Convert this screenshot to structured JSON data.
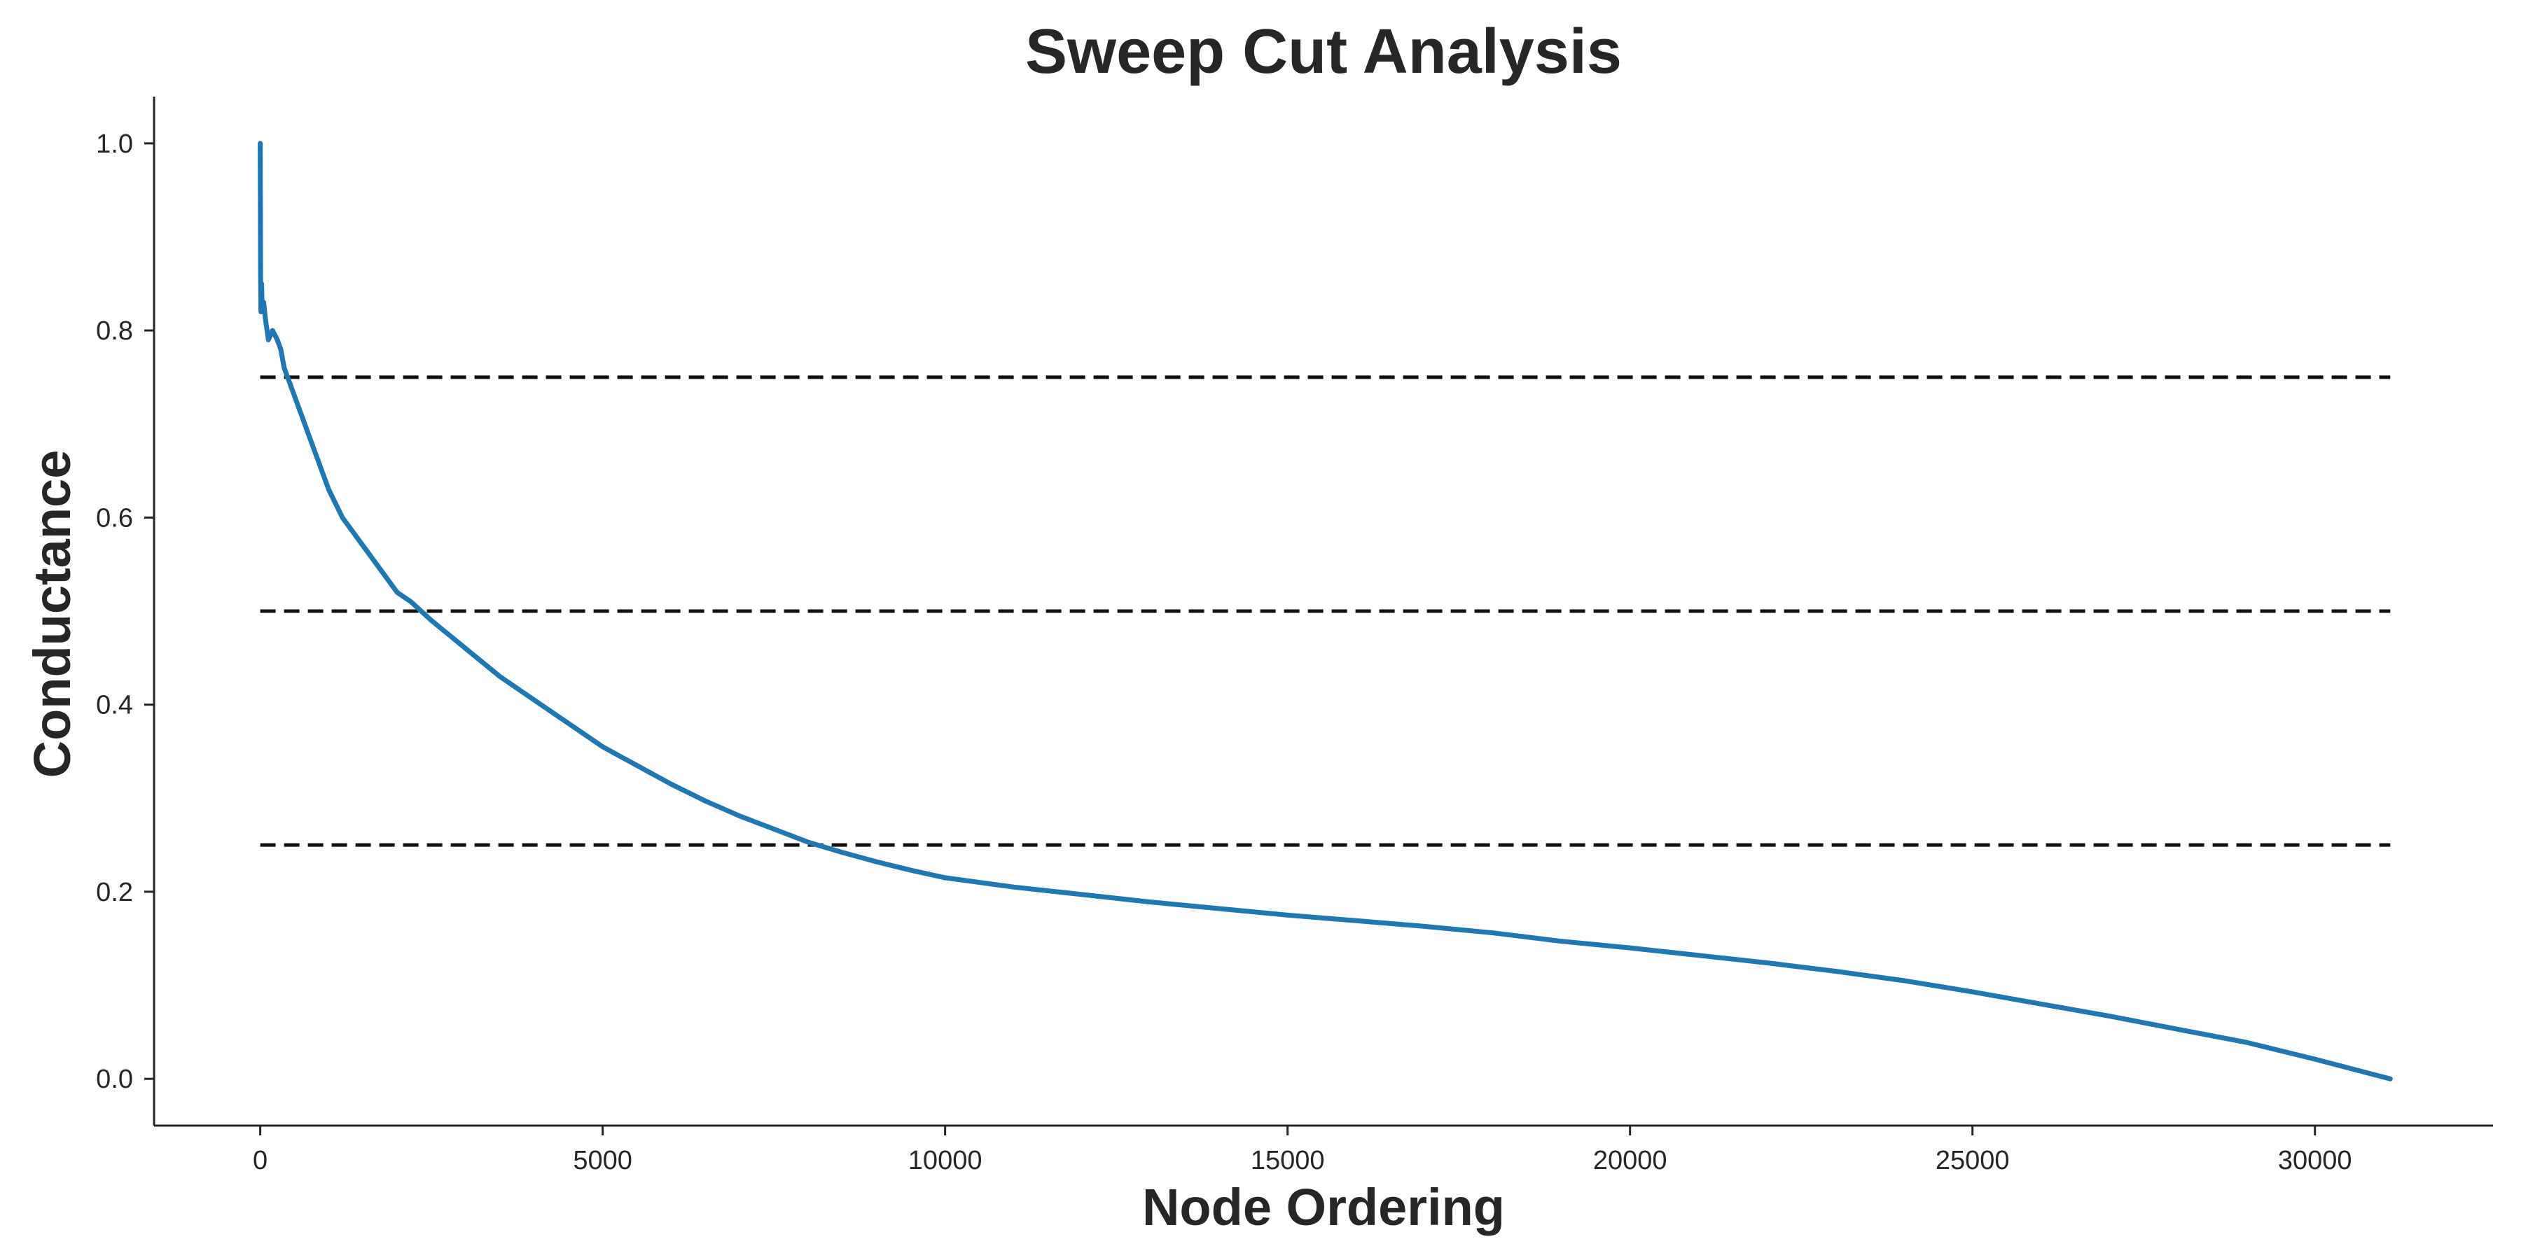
{
  "chart_data": {
    "type": "line",
    "title": "Sweep Cut Analysis",
    "xlabel": "Node Ordering",
    "ylabel": "Conductance",
    "xlim": [
      -1550,
      32600
    ],
    "ylim": [
      -0.05,
      1.05
    ],
    "xticks": [
      0,
      5000,
      10000,
      15000,
      20000,
      25000,
      30000
    ],
    "yticks": [
      0.0,
      0.2,
      0.4,
      0.6,
      0.8,
      1.0
    ],
    "xtick_labels": [
      "0",
      "5000",
      "10000",
      "15000",
      "20000",
      "25000",
      "30000"
    ],
    "ytick_labels": [
      "0.0",
      "0.2",
      "0.4",
      "0.6",
      "0.8",
      "1.0"
    ],
    "grid": false,
    "series": [
      {
        "color": "#1f77b4",
        "x": [
          0,
          5,
          10,
          20,
          30,
          50,
          80,
          120,
          180,
          250,
          300,
          350,
          400,
          500,
          600,
          800,
          1000,
          1200,
          1500,
          1800,
          2000,
          2200,
          2500,
          3000,
          3500,
          4000,
          4500,
          5000,
          5500,
          6000,
          6500,
          7000,
          7500,
          8000,
          8500,
          9000,
          9500,
          10000,
          11000,
          12000,
          13000,
          14000,
          15000,
          16000,
          17000,
          18000,
          19000,
          20000,
          21000,
          22000,
          23000,
          24000,
          25000,
          26000,
          27000,
          28000,
          29000,
          30000,
          31100
        ],
        "y": [
          1.0,
          0.86,
          0.82,
          0.85,
          0.82,
          0.83,
          0.81,
          0.79,
          0.8,
          0.79,
          0.78,
          0.76,
          0.75,
          0.73,
          0.71,
          0.67,
          0.63,
          0.6,
          0.57,
          0.54,
          0.52,
          0.51,
          0.49,
          0.46,
          0.43,
          0.405,
          0.38,
          0.355,
          0.335,
          0.315,
          0.297,
          0.281,
          0.267,
          0.253,
          0.242,
          0.232,
          0.223,
          0.215,
          0.205,
          0.197,
          0.189,
          0.182,
          0.175,
          0.169,
          0.163,
          0.156,
          0.147,
          0.14,
          0.132,
          0.124,
          0.115,
          0.105,
          0.093,
          0.08,
          0.067,
          0.053,
          0.039,
          0.021,
          0.0
        ]
      }
    ],
    "reference_lines": [
      {
        "y": 0.75,
        "x_start": 0,
        "x_end": 31100,
        "style": "dashed",
        "color": "#000000"
      },
      {
        "y": 0.5,
        "x_start": 0,
        "x_end": 31100,
        "style": "dashed",
        "color": "#000000"
      },
      {
        "y": 0.25,
        "x_start": 0,
        "x_end": 31100,
        "style": "dashed",
        "color": "#000000"
      }
    ]
  }
}
